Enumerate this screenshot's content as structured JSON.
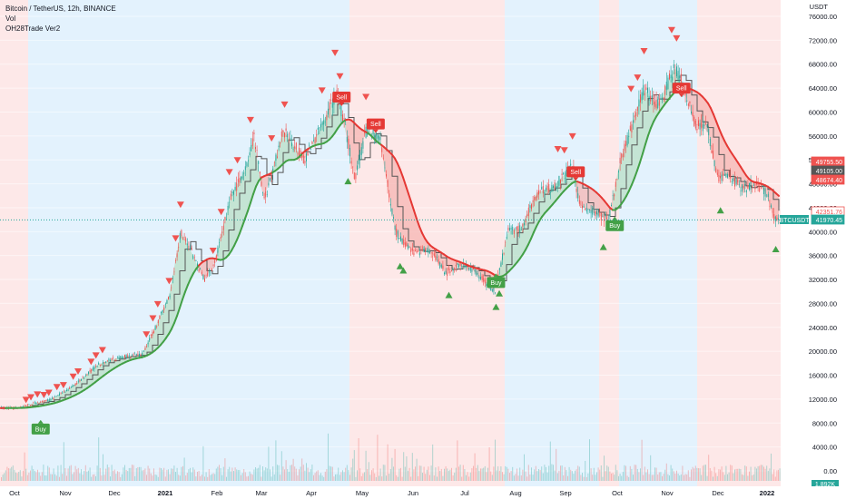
{
  "header": {
    "symbol_line": "Bitcoin / TetherUS, 12h, BINANCE",
    "indicator_1": "Vol",
    "indicator_2": "OH28Trade Ver2"
  },
  "colors": {
    "up": "#26a69a",
    "down": "#ef5350",
    "ma_up": "#43a047",
    "ma_down": "#e53935",
    "band_bull_fill": "#b9dfc6",
    "band_bear_fill": "#f5b6b3",
    "bg_blue": "#e3f2fd",
    "bg_red": "#fde8e8",
    "step_line": "#555555"
  },
  "chart_data": {
    "type": "candlestick",
    "symbol_badge": "BTCUSDT",
    "currency_label": "USDT",
    "x_ticks": [
      "Oct",
      "Nov",
      "Dec",
      "2021",
      "Feb",
      "Mar",
      "Apr",
      "May",
      "Jun",
      "Jul",
      "Aug",
      "Sep",
      "Oct",
      "Nov",
      "Dec",
      "2022"
    ],
    "y_ticks": [
      "76000.00",
      "72000.00",
      "68000.00",
      "64000.00",
      "60000.00",
      "56000.00",
      "52000.00",
      "48000.00",
      "44000.00",
      "40000.00",
      "36000.00",
      "32000.00",
      "28000.00",
      "24000.00",
      "20000.00",
      "16000.00",
      "12000.00",
      "8000.00",
      "4000.00",
      "0.00"
    ],
    "volume_ticks": [
      "8000.00",
      "4000.00",
      "0.00"
    ],
    "price_labels": [
      {
        "value": "49755.50",
        "color": "#ef5350"
      },
      {
        "value": "49105.00",
        "color": "#555555"
      },
      {
        "value": "48674.40",
        "color": "#ef5350"
      },
      {
        "value": "42351.76",
        "color": "#ef5350"
      },
      {
        "value": "41970.45",
        "color": "#26a69a"
      }
    ],
    "volume_badge": "1.892K",
    "last_price": 41970.45,
    "ylim": [
      0,
      78000
    ],
    "background_regions": [
      {
        "from": "Oct",
        "to": "Oct",
        "color": "red"
      },
      {
        "from": "Oct",
        "to": "Apr",
        "color": "blue"
      },
      {
        "from": "Apr",
        "to": "Jul",
        "color": "red"
      },
      {
        "from": "Jul",
        "to": "Sep",
        "color": "blue"
      },
      {
        "from": "Sep",
        "to": "Oct",
        "color": "red"
      },
      {
        "from": "Oct",
        "to": "Nov",
        "color": "blue"
      },
      {
        "from": "Nov",
        "to": "2022",
        "color": "red"
      }
    ],
    "close_path": [
      {
        "date": "2020-09-22",
        "price": 10500
      },
      {
        "date": "2020-10-01",
        "price": 10600
      },
      {
        "date": "2020-10-10",
        "price": 11300
      },
      {
        "date": "2020-10-20",
        "price": 11900
      },
      {
        "date": "2020-10-30",
        "price": 13500
      },
      {
        "date": "2020-11-08",
        "price": 15300
      },
      {
        "date": "2020-11-18",
        "price": 17800
      },
      {
        "date": "2020-11-25",
        "price": 18500
      },
      {
        "date": "2020-12-05",
        "price": 19200
      },
      {
        "date": "2020-12-15",
        "price": 19400
      },
      {
        "date": "2020-12-22",
        "price": 23200
      },
      {
        "date": "2021-01-01",
        "price": 29300
      },
      {
        "date": "2021-01-08",
        "price": 40000
      },
      {
        "date": "2021-01-14",
        "price": 37000
      },
      {
        "date": "2021-01-22",
        "price": 32000
      },
      {
        "date": "2021-01-28",
        "price": 34000
      },
      {
        "date": "2021-02-08",
        "price": 46000
      },
      {
        "date": "2021-02-18",
        "price": 51000
      },
      {
        "date": "2021-02-22",
        "price": 56000
      },
      {
        "date": "2021-02-28",
        "price": 45000
      },
      {
        "date": "2021-03-12",
        "price": 57000
      },
      {
        "date": "2021-03-25",
        "price": 52000
      },
      {
        "date": "2021-04-05",
        "price": 58000
      },
      {
        "date": "2021-04-14",
        "price": 63500
      },
      {
        "date": "2021-04-20",
        "price": 56000
      },
      {
        "date": "2021-04-25",
        "price": 49000
      },
      {
        "date": "2021-05-02",
        "price": 57000
      },
      {
        "date": "2021-05-10",
        "price": 56000
      },
      {
        "date": "2021-05-15",
        "price": 48000
      },
      {
        "date": "2021-05-20",
        "price": 40000
      },
      {
        "date": "2021-05-25",
        "price": 38000
      },
      {
        "date": "2021-06-01",
        "price": 36500
      },
      {
        "date": "2021-06-10",
        "price": 37000
      },
      {
        "date": "2021-06-20",
        "price": 33000
      },
      {
        "date": "2021-06-27",
        "price": 34500
      },
      {
        "date": "2021-07-05",
        "price": 34000
      },
      {
        "date": "2021-07-20",
        "price": 30000
      },
      {
        "date": "2021-07-28",
        "price": 40000
      },
      {
        "date": "2021-08-05",
        "price": 40500
      },
      {
        "date": "2021-08-15",
        "price": 46500
      },
      {
        "date": "2021-08-25",
        "price": 47500
      },
      {
        "date": "2021-09-06",
        "price": 51000
      },
      {
        "date": "2021-09-10",
        "price": 44500
      },
      {
        "date": "2021-09-20",
        "price": 43000
      },
      {
        "date": "2021-09-28",
        "price": 42000
      },
      {
        "date": "2021-10-05",
        "price": 51500
      },
      {
        "date": "2021-10-15",
        "price": 60000
      },
      {
        "date": "2021-10-20",
        "price": 64000
      },
      {
        "date": "2021-10-28",
        "price": 61000
      },
      {
        "date": "2021-11-08",
        "price": 67500
      },
      {
        "date": "2021-11-12",
        "price": 65000
      },
      {
        "date": "2021-11-20",
        "price": 58000
      },
      {
        "date": "2021-11-28",
        "price": 57000
      },
      {
        "date": "2021-12-04",
        "price": 49000
      },
      {
        "date": "2021-12-10",
        "price": 49500
      },
      {
        "date": "2021-12-20",
        "price": 47000
      },
      {
        "date": "2021-12-28",
        "price": 48000
      },
      {
        "date": "2022-01-03",
        "price": 46500
      },
      {
        "date": "2022-01-08",
        "price": 41970
      }
    ],
    "signals": [
      {
        "label": "Buy",
        "date": "2020-10-14",
        "price": 7000,
        "type": "buy"
      },
      {
        "label": "Sell",
        "date": "2021-04-17",
        "price": 62500,
        "type": "sell"
      },
      {
        "label": "Sell",
        "date": "2021-05-08",
        "price": 58000,
        "type": "sell"
      },
      {
        "label": "Buy",
        "date": "2021-07-21",
        "price": 31500,
        "type": "buy"
      },
      {
        "label": "Sell",
        "date": "2021-09-08",
        "price": 50000,
        "type": "sell"
      },
      {
        "label": "Buy",
        "date": "2021-10-02",
        "price": 41000,
        "type": "buy"
      },
      {
        "label": "Sell",
        "date": "2021-11-12",
        "price": 64000,
        "type": "sell"
      }
    ]
  }
}
